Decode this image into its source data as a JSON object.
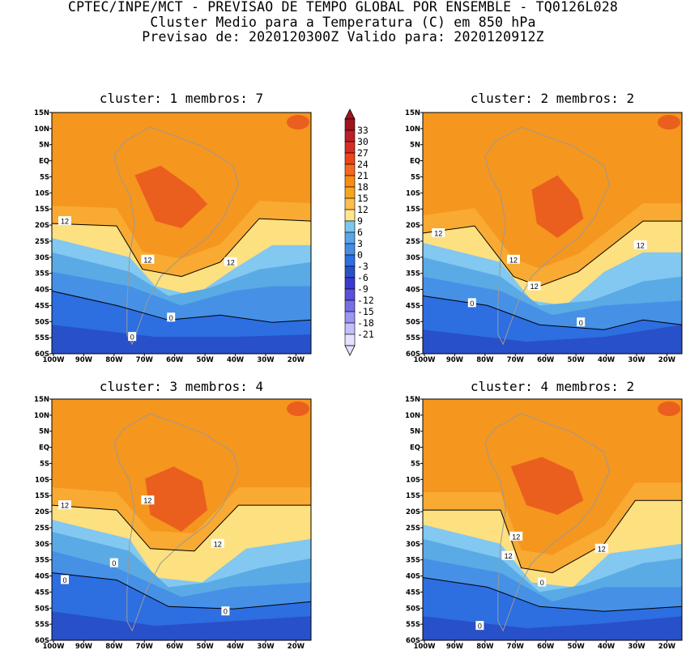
{
  "header": {
    "line1": "CPTEC/INPE/MCT - PREVISAO DE TEMPO GLOBAL POR ENSEMBLE - TQ0126L028",
    "line2": "Cluster Medio para a Temperatura (C) em 850 hPa",
    "line3": "Previsao de: 2020120300Z   Valido para: 2020120912Z"
  },
  "panels": [
    {
      "title": "cluster: 1  membros: 7",
      "contour_labels": [
        "12",
        "12",
        "12",
        "0",
        "0"
      ]
    },
    {
      "title": "cluster: 2  membros: 2",
      "contour_labels": [
        "12",
        "12",
        "12",
        "12",
        "0",
        "0"
      ]
    },
    {
      "title": "cluster: 3  membros: 4",
      "contour_labels": [
        "12",
        "12",
        "12",
        "0",
        "0",
        "0"
      ]
    },
    {
      "title": "cluster: 4  membros: 2",
      "contour_labels": [
        "12",
        "12",
        "12",
        "0",
        "0"
      ]
    }
  ],
  "lat_ticks": [
    "15N",
    "10N",
    "5N",
    "EQ",
    "5S",
    "10S",
    "15S",
    "20S",
    "25S",
    "30S",
    "35S",
    "40S",
    "45S",
    "50S",
    "55S",
    "60S"
  ],
  "lon_ticks": [
    "100W",
    "90W",
    "80W",
    "70W",
    "60W",
    "50W",
    "40W",
    "30W",
    "20W"
  ],
  "colorbar": {
    "labels": [
      "33",
      "30",
      "27",
      "24",
      "21",
      "18",
      "15",
      "12",
      "9",
      "6",
      "3",
      "0",
      "-3",
      "-6",
      "-9",
      "-12",
      "-15",
      "-18",
      "-21"
    ],
    "colors": [
      "#a0141e",
      "#be1e28",
      "#d72d24",
      "#eb4618",
      "#f5691e",
      "#fa8c14",
      "#f8a51e",
      "#fbbe4b",
      "#fde68c",
      "#78c8f0",
      "#5aa5e6",
      "#468ce6",
      "#2d6ee1",
      "#2850c8",
      "#3a3ad2",
      "#5a50dc",
      "#786ee6",
      "#9b96f0",
      "#c3beff",
      "#e6e1ff"
    ],
    "arrow_top_color": "#a0141e",
    "arrow_bottom_color": "#e6e1ff"
  },
  "map_colors": {
    "t18_21": "#eb5f1e",
    "t15_18": "#f5961e",
    "t12_15": "#f8ae36",
    "t9_12": "#fde080",
    "t6_9": "#82c8f0",
    "t3_6": "#5aaae6",
    "t0_3": "#4690e6",
    "tm3_0": "#2d6ee1",
    "tm6_m3": "#2850c8",
    "tm9_m6": "#5546d2"
  }
}
